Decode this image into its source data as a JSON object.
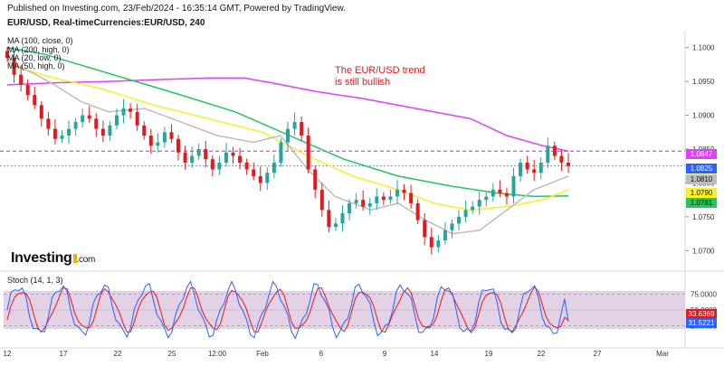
{
  "header": {
    "published_line": "Published on Investing.com, 23/Feb/2024 - 16:35:14 GMT, Powered by TradingView.",
    "symbol_line": "EUR/USD, Real-timeCurrencies:EUR/USD, 240"
  },
  "indicators": [
    {
      "label": "MA (100, close, 0)",
      "color": "#22c55e"
    },
    {
      "label": "MA (200, high, 0)",
      "color": "#e040fb"
    },
    {
      "label": "MA (20, low, 0)",
      "color": "#bdbdbd"
    },
    {
      "label": "MA (50, high, 0)",
      "color": "#f5f028"
    }
  ],
  "annotation": {
    "line1": "The EUR/USD trend",
    "line2": "is still bullish",
    "color": "#e31a1c"
  },
  "logo": {
    "name": "Investing",
    "suffix": ".com"
  },
  "price_axis": {
    "ticks": [
      "1.1000",
      "1.0950",
      "1.0900",
      "1.0850",
      "1.0800",
      "1.0750",
      "1.0700"
    ],
    "tags": [
      {
        "text": "1.0847",
        "color": "#e040fb"
      },
      {
        "text": "1.0825",
        "color": "#2962ff"
      },
      {
        "text": "1.0810",
        "color": "#bdbdbd"
      },
      {
        "text": "1.0790",
        "color": "#f5f028"
      },
      {
        "text": "1.0781",
        "color": "#22c55e"
      }
    ]
  },
  "stochastic": {
    "title": "Stoch (14, 1, 3)",
    "ticks": [
      "75.0000",
      "50.0000",
      "25.0000"
    ],
    "tags": [
      {
        "text": "33.6369",
        "color": "#e31a1c"
      },
      {
        "text": "31.5221",
        "color": "#2962ff"
      }
    ]
  },
  "time_axis": [
    "12",
    "17",
    "22",
    "25",
    "12:00",
    "Feb",
    "6",
    "9",
    "14",
    "19",
    "22",
    "27",
    "Mar"
  ],
  "colors": {
    "bull": "#26a69a",
    "bear": "#e31a1c",
    "dashed_line": "#e040fb",
    "stoch_fill": "#dcc6e0"
  },
  "chart_data": {
    "type": "candlestick",
    "title": "EUR/USD, Real-timeCurrencies:EUR/USD, 240",
    "ylim": [
      1.0675,
      1.1025
    ],
    "ohlc_close_approx": [
      1.0985,
      1.096,
      1.0945,
      1.093,
      1.0915,
      1.0895,
      1.088,
      1.0865,
      1.087,
      1.088,
      1.089,
      1.09,
      1.0895,
      1.088,
      1.087,
      1.0885,
      1.09,
      1.091,
      1.0905,
      1.0885,
      1.087,
      1.0855,
      1.086,
      1.0875,
      1.0865,
      1.0845,
      1.083,
      1.084,
      1.085,
      1.0835,
      1.082,
      1.083,
      1.0845,
      1.084,
      1.083,
      1.082,
      1.081,
      1.08,
      1.0815,
      1.083,
      1.086,
      1.088,
      1.089,
      1.087,
      1.082,
      1.079,
      1.076,
      1.0735,
      1.074,
      1.0755,
      1.077,
      1.0775,
      1.0765,
      1.077,
      1.078,
      1.0775,
      1.078,
      1.079,
      1.0785,
      1.077,
      1.0745,
      1.072,
      1.0705,
      1.0715,
      1.073,
      1.074,
      1.075,
      1.076,
      1.0765,
      1.0775,
      1.078,
      1.079,
      1.0785,
      1.078,
      1.081,
      1.083,
      1.082,
      1.0815,
      1.083,
      1.0855,
      1.084,
      1.083,
      1.0825
    ],
    "last_price": 1.0825,
    "moving_averages": {
      "MA 200 high end": 1.0847,
      "MA 20 low end": 1.081,
      "MA 50 high end": 1.079,
      "MA 100 close end": 1.0781
    },
    "stochastic_end": {
      "k": 31.5221,
      "d": 33.6369
    },
    "stoch_ylim": [
      0,
      100
    ]
  }
}
